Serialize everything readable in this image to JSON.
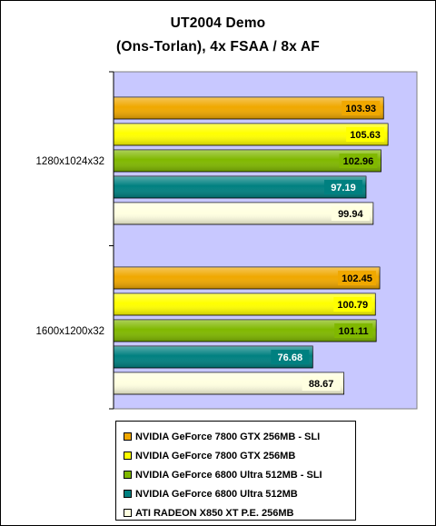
{
  "chart_data": {
    "type": "bar",
    "orientation": "horizontal",
    "title": "UT2004 Demo",
    "subtitle": "(Ons-Torlan), 4x FSAA / 8x AF",
    "categories": [
      "1280x1024x32",
      "1600x1200x32"
    ],
    "series": [
      {
        "name": "NVIDIA GeForce 7800 GTX 256MB - SLI",
        "color": "#f0a800",
        "values": [
          103.93,
          102.45
        ]
      },
      {
        "name": "NVIDIA GeForce 7800 GTX 256MB",
        "color": "#ffff00",
        "values": [
          105.63,
          100.79
        ]
      },
      {
        "name": "NVIDIA GeForce 6800 Ultra 512MB - SLI",
        "color": "#80b800",
        "values": [
          102.96,
          101.11
        ]
      },
      {
        "name": "NVIDIA GeForce 6800 Ultra 512MB",
        "color": "#008080",
        "values": [
          97.19,
          76.68
        ]
      },
      {
        "name": "ATI RADEON X850 XT P.E. 256MB",
        "color": "#ffffe0",
        "values": [
          99.94,
          88.67
        ]
      }
    ],
    "xlim": [
      0,
      115
    ],
    "grid": false,
    "legend": "bottom",
    "plot_background": "#c8c8ff"
  }
}
